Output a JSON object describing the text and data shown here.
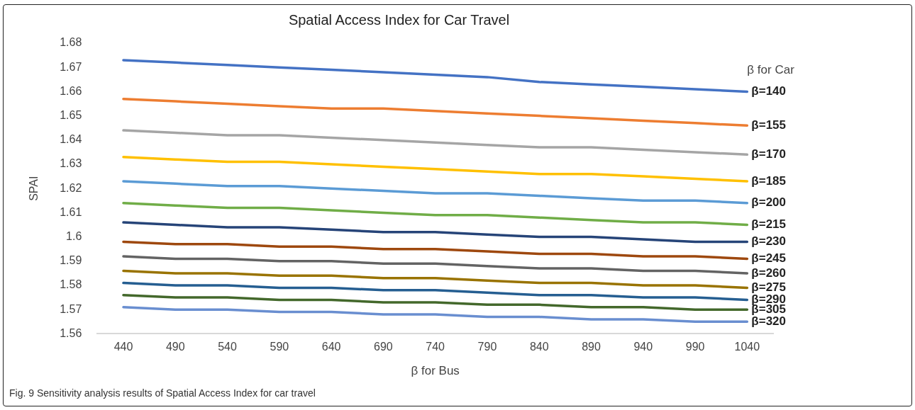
{
  "chart_data": {
    "type": "line",
    "title": "Spatial Access Index for Car Travel",
    "xlabel": "β for Bus",
    "ylabel": "SPAI",
    "legend_title": "β for Car",
    "categories": [
      "440",
      "490",
      "540",
      "590",
      "640",
      "690",
      "740",
      "790",
      "840",
      "890",
      "940",
      "990",
      "1040"
    ],
    "ylim": [
      1.56,
      1.68
    ],
    "yticks": [
      1.56,
      1.57,
      1.58,
      1.59,
      1.6,
      1.61,
      1.62,
      1.63,
      1.64,
      1.65,
      1.66,
      1.67,
      1.68
    ],
    "series": [
      {
        "name": "β=140",
        "color": "#4472c4",
        "values": [
          1.673,
          1.672,
          1.671,
          1.67,
          1.669,
          1.668,
          1.667,
          1.666,
          1.664,
          1.663,
          1.662,
          1.661,
          1.66
        ]
      },
      {
        "name": "β=155",
        "color": "#ed7d31",
        "values": [
          1.657,
          1.656,
          1.655,
          1.654,
          1.653,
          1.653,
          1.652,
          1.651,
          1.65,
          1.649,
          1.648,
          1.647,
          1.646
        ]
      },
      {
        "name": "β=170",
        "color": "#a5a5a5",
        "values": [
          1.644,
          1.643,
          1.642,
          1.642,
          1.641,
          1.64,
          1.639,
          1.638,
          1.637,
          1.637,
          1.636,
          1.635,
          1.634
        ]
      },
      {
        "name": "β=185",
        "color": "#ffc000",
        "values": [
          1.633,
          1.632,
          1.631,
          1.631,
          1.63,
          1.629,
          1.628,
          1.627,
          1.626,
          1.626,
          1.625,
          1.624,
          1.623
        ]
      },
      {
        "name": "β=200",
        "color": "#5b9bd5",
        "values": [
          1.623,
          1.622,
          1.621,
          1.621,
          1.62,
          1.619,
          1.618,
          1.618,
          1.617,
          1.616,
          1.615,
          1.615,
          1.614
        ]
      },
      {
        "name": "β=215",
        "color": "#70ad47",
        "values": [
          1.614,
          1.613,
          1.612,
          1.612,
          1.611,
          1.61,
          1.609,
          1.609,
          1.608,
          1.607,
          1.606,
          1.606,
          1.605
        ]
      },
      {
        "name": "β=230",
        "color": "#264478",
        "values": [
          1.606,
          1.605,
          1.604,
          1.604,
          1.603,
          1.602,
          1.602,
          1.601,
          1.6,
          1.6,
          1.599,
          1.598,
          1.598
        ]
      },
      {
        "name": "β=245",
        "color": "#9e480e",
        "values": [
          1.598,
          1.597,
          1.597,
          1.596,
          1.596,
          1.595,
          1.595,
          1.594,
          1.593,
          1.593,
          1.592,
          1.592,
          1.591
        ]
      },
      {
        "name": "β=260",
        "color": "#636363",
        "values": [
          1.592,
          1.591,
          1.591,
          1.59,
          1.59,
          1.589,
          1.589,
          1.588,
          1.587,
          1.587,
          1.586,
          1.586,
          1.585
        ]
      },
      {
        "name": "β=275",
        "color": "#997300",
        "values": [
          1.586,
          1.585,
          1.585,
          1.584,
          1.584,
          1.583,
          1.583,
          1.582,
          1.581,
          1.581,
          1.58,
          1.58,
          1.579
        ]
      },
      {
        "name": "β=290",
        "color": "#255e91",
        "values": [
          1.581,
          1.58,
          1.58,
          1.579,
          1.579,
          1.578,
          1.578,
          1.577,
          1.576,
          1.576,
          1.575,
          1.575,
          1.574
        ]
      },
      {
        "name": "β=305",
        "color": "#43682b",
        "values": [
          1.576,
          1.575,
          1.575,
          1.574,
          1.574,
          1.573,
          1.573,
          1.572,
          1.572,
          1.571,
          1.571,
          1.57,
          1.57
        ]
      },
      {
        "name": "β=320",
        "color": "#698ed0",
        "values": [
          1.571,
          1.57,
          1.57,
          1.569,
          1.569,
          1.568,
          1.568,
          1.567,
          1.567,
          1.566,
          1.566,
          1.565,
          1.565
        ]
      }
    ],
    "annotations": [
      "Fig. 9  Sensitivity analysis results of Spatial Access Index for car travel"
    ]
  }
}
